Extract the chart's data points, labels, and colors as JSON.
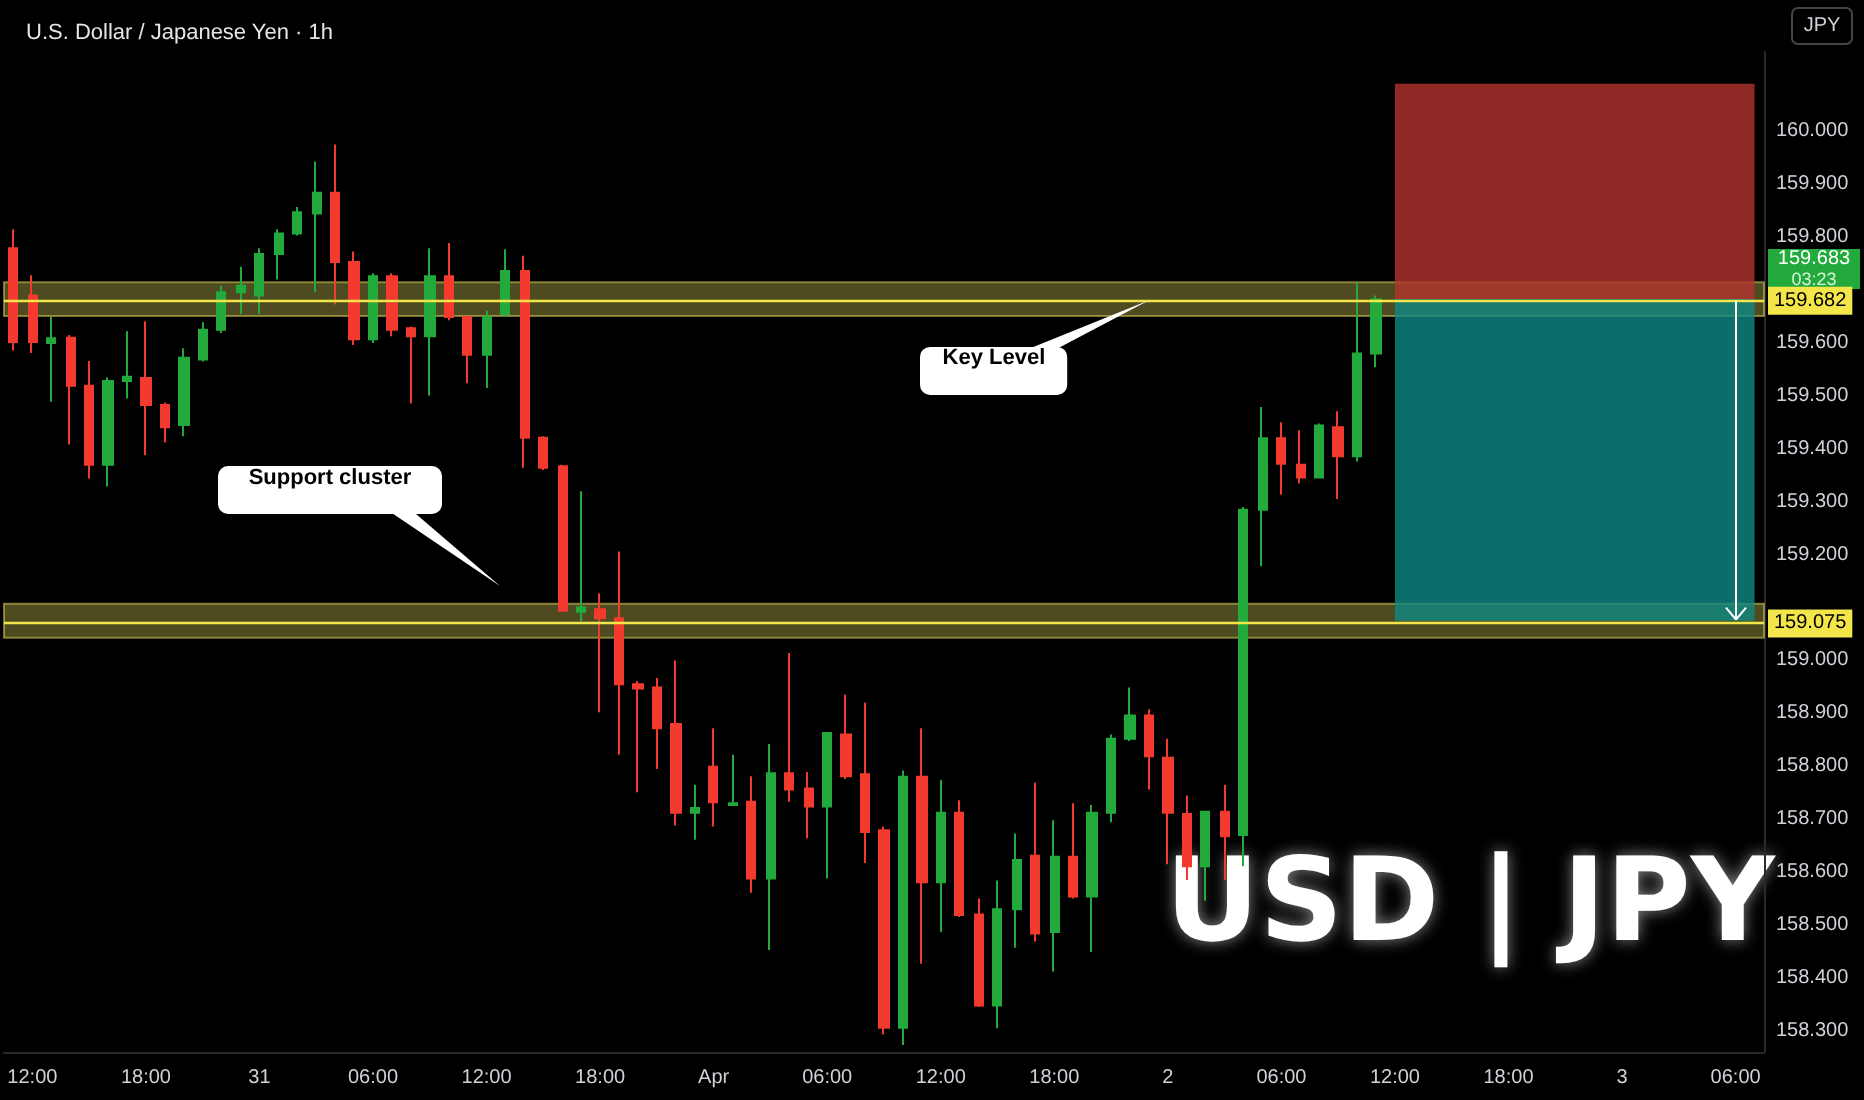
{
  "chart_data": {
    "type": "candlestick",
    "title": "U.S. Dollar / Japanese Yen · 1h",
    "categories": [
      null,
      "12:00",
      null,
      null,
      null,
      null,
      null,
      "18:00",
      null,
      null,
      null,
      null,
      null,
      "31",
      null,
      null,
      null,
      null,
      null,
      "06:00",
      null,
      null,
      null,
      null,
      null,
      "12:00",
      null,
      null,
      null,
      null,
      null,
      "18:00",
      null,
      null,
      null,
      null,
      null,
      "Apr",
      null,
      null,
      null,
      null,
      null,
      "06:00",
      null,
      null,
      null,
      null,
      null,
      "12:00",
      null,
      null,
      null,
      null,
      null,
      "18:00",
      null,
      null,
      null,
      null,
      null,
      "2",
      null,
      null,
      null,
      null,
      null,
      "06:00",
      null,
      null,
      null,
      null,
      null,
      "12:00",
      null,
      null,
      null,
      null,
      null,
      "18:00",
      null,
      null,
      null,
      null,
      null,
      "3",
      null,
      null,
      null,
      null,
      null,
      "06:00",
      null
    ],
    "ohlc": [
      [
        159.779,
        159.815,
        159.586,
        159.602
      ],
      [
        159.69,
        159.728,
        159.581,
        159.602
      ],
      [
        159.6,
        159.649,
        159.489,
        159.609
      ],
      [
        159.61,
        159.615,
        159.408,
        159.519
      ],
      [
        159.519,
        159.566,
        159.344,
        159.37
      ],
      [
        159.37,
        159.535,
        159.329,
        159.528
      ],
      [
        159.528,
        159.622,
        159.495,
        159.536
      ],
      [
        159.534,
        159.641,
        159.388,
        159.483
      ],
      [
        159.483,
        159.487,
        159.412,
        159.441
      ],
      [
        159.445,
        159.59,
        159.424,
        159.572
      ],
      [
        159.569,
        159.639,
        159.565,
        159.625
      ],
      [
        159.625,
        159.708,
        159.619,
        159.696
      ],
      [
        159.696,
        159.744,
        159.655,
        159.708
      ],
      [
        159.69,
        159.779,
        159.655,
        159.768
      ],
      [
        159.768,
        159.815,
        159.72,
        159.807
      ],
      [
        159.807,
        159.857,
        159.803,
        159.847
      ],
      [
        159.845,
        159.943,
        159.696,
        159.884
      ],
      [
        159.884,
        159.975,
        159.673,
        159.753
      ],
      [
        159.753,
        159.773,
        159.596,
        159.607
      ],
      [
        159.607,
        159.732,
        159.6,
        159.726
      ],
      [
        159.726,
        159.732,
        159.613,
        159.625
      ],
      [
        159.628,
        159.631,
        159.486,
        159.613
      ],
      [
        159.613,
        159.779,
        159.501,
        159.726
      ],
      [
        159.726,
        159.789,
        159.643,
        159.649
      ],
      [
        159.649,
        159.652,
        159.524,
        159.578
      ],
      [
        159.578,
        159.661,
        159.515,
        159.649
      ],
      [
        159.655,
        159.777,
        159.649,
        159.736
      ],
      [
        159.736,
        159.765,
        159.364,
        159.421
      ],
      [
        159.421,
        159.424,
        159.36,
        159.364
      ],
      [
        159.367,
        159.37,
        159.092,
        159.094
      ],
      [
        159.092,
        159.32,
        159.074,
        159.1
      ],
      [
        159.097,
        159.127,
        158.902,
        159.08
      ],
      [
        159.08,
        159.206,
        158.822,
        158.955
      ],
      [
        158.955,
        158.961,
        158.751,
        158.947
      ],
      [
        158.949,
        158.967,
        158.795,
        158.872
      ],
      [
        158.88,
        159.0,
        158.688,
        158.712
      ],
      [
        158.712,
        158.765,
        158.661,
        158.721
      ],
      [
        158.799,
        158.872,
        158.686,
        158.732
      ],
      [
        158.727,
        158.822,
        158.725,
        158.73
      ],
      [
        158.733,
        158.781,
        158.561,
        158.588
      ],
      [
        158.588,
        158.842,
        158.453,
        158.787
      ],
      [
        158.787,
        159.014,
        158.733,
        158.756
      ],
      [
        158.758,
        158.789,
        158.664,
        158.724
      ],
      [
        158.724,
        158.865,
        158.588,
        158.863
      ],
      [
        158.86,
        158.935,
        158.776,
        158.781
      ],
      [
        158.785,
        158.92,
        158.617,
        158.676
      ],
      [
        158.679,
        158.686,
        158.293,
        158.306
      ],
      [
        158.306,
        158.792,
        158.273,
        158.78
      ],
      [
        158.78,
        158.872,
        158.427,
        158.581
      ],
      [
        158.581,
        158.774,
        158.487,
        158.712
      ],
      [
        158.712,
        158.736,
        158.515,
        158.519
      ],
      [
        158.52,
        158.55,
        158.345,
        158.348
      ],
      [
        158.348,
        158.584,
        158.305,
        158.53
      ],
      [
        158.53,
        158.673,
        158.457,
        158.623
      ],
      [
        158.631,
        158.769,
        158.469,
        158.484
      ],
      [
        158.487,
        158.698,
        158.412,
        158.629
      ],
      [
        158.629,
        158.73,
        158.55,
        158.554
      ],
      [
        158.554,
        158.727,
        158.449,
        158.712
      ],
      [
        158.712,
        158.86,
        158.694,
        158.852
      ],
      [
        158.852,
        158.949,
        158.848,
        158.896
      ],
      [
        158.896,
        158.908,
        158.756,
        158.819
      ],
      [
        158.816,
        158.852,
        158.615,
        158.712
      ],
      [
        158.71,
        158.745,
        158.585,
        158.611
      ],
      [
        158.611,
        158.716,
        158.546,
        158.714
      ],
      [
        158.714,
        158.765,
        158.585,
        158.668
      ],
      [
        158.67,
        159.29,
        158.611,
        159.285
      ],
      [
        159.285,
        159.479,
        159.178,
        159.42
      ],
      [
        159.42,
        159.45,
        159.313,
        159.372
      ],
      [
        159.37,
        159.435,
        159.335,
        159.346
      ],
      [
        159.346,
        159.448,
        159.344,
        159.444
      ],
      [
        159.441,
        159.471,
        159.305,
        159.386
      ],
      [
        159.386,
        159.714,
        159.376,
        159.58
      ],
      [
        159.58,
        159.69,
        159.554,
        159.682
      ],
      null,
      null,
      null,
      null,
      null,
      null,
      null,
      null,
      null,
      null,
      null,
      null,
      null,
      null,
      null,
      null,
      null,
      null,
      null,
      null
    ],
    "colors": [
      "#f23b2e",
      "#f23b2e",
      "#22ab3c",
      "#f23b2e",
      "#f23b2e",
      "#22ab3c",
      "#22ab3c",
      "#f23b2e",
      "#f23b2e",
      "#22ab3c",
      "#22ab3c",
      "#22ab3c",
      "#22ab3c",
      "#22ab3c",
      "#22ab3c",
      "#22ab3c",
      "#22ab3c",
      "#f23b2e",
      "#f23b2e",
      "#22ab3c",
      "#f23b2e",
      "#f23b2e",
      "#22ab3c",
      "#f23b2e",
      "#f23b2e",
      "#22ab3c",
      "#22ab3c",
      "#f23b2e",
      "#f23b2e",
      "#f23b2e",
      "#22ab3c",
      "#f23b2e",
      "#f23b2e",
      "#f23b2e",
      "#f23b2e",
      "#f23b2e",
      "#22ab3c",
      "#f23b2e",
      "#22ab3c",
      "#f23b2e",
      "#22ab3c",
      "#f23b2e",
      "#f23b2e",
      "#22ab3c",
      "#f23b2e",
      "#f23b2e",
      "#f23b2e",
      "#22ab3c",
      "#f23b2e",
      "#22ab3c",
      "#f23b2e",
      "#f23b2e",
      "#22ab3c",
      "#22ab3c",
      "#f23b2e",
      "#22ab3c",
      "#f23b2e",
      "#22ab3c",
      "#22ab3c",
      "#22ab3c",
      "#f23b2e",
      "#f23b2e",
      "#f23b2e",
      "#22ab3c",
      "#f23b2e",
      "#22ab3c",
      "#22ab3c",
      "#f23b2e",
      "#f23b2e",
      "#22ab3c",
      "#f23b2e",
      "#22ab3c",
      "#22ab3c",
      null,
      null,
      null,
      null,
      null,
      null,
      null,
      null,
      null,
      null,
      null,
      null,
      null,
      null,
      null,
      null,
      null,
      null,
      null,
      null
    ],
    "ylim": [
      158.26,
      160.15
    ],
    "yticks": [
      {
        "value": 158.3,
        "label": "158.300"
      },
      {
        "value": 158.4,
        "label": "158.400"
      },
      {
        "value": 158.5,
        "label": "158.500"
      },
      {
        "value": 158.6,
        "label": "158.600"
      },
      {
        "value": 158.7,
        "label": "158.700"
      },
      {
        "value": 158.8,
        "label": "158.800"
      },
      {
        "value": 158.9,
        "label": "158.900"
      },
      {
        "value": 159,
        "label": "159.000"
      },
      {
        "value": 159.2,
        "label": "159.200"
      },
      {
        "value": 159.3,
        "label": "159.300"
      },
      {
        "value": 159.4,
        "label": "159.400"
      },
      {
        "value": 159.5,
        "label": "159.500"
      },
      {
        "value": 159.6,
        "label": "159.600"
      },
      {
        "value": 159.8,
        "label": "159.800"
      },
      {
        "value": 159.9,
        "label": "159.900"
      },
      {
        "value": 160,
        "label": "160.000"
      }
    ],
    "bands": [
      {
        "axis": "y",
        "from": 159.651,
        "to": 159.715,
        "color": "#8c8838"
      },
      {
        "axis": "y",
        "from": 159.043,
        "to": 159.107,
        "color": "#8c8838"
      },
      {
        "axis": "y",
        "from": 159.683,
        "to": 160.09,
        "color": "#b2332e"
      },
      {
        "axis": "y",
        "from": 159.075,
        "to": 159.683,
        "color": "#0f8a84"
      }
    ],
    "ref_lines": [
      {
        "axis": "y",
        "value": 159.682,
        "label": "159.682",
        "color": "#f2e64a"
      },
      {
        "axis": "y",
        "value": 159.075,
        "label": "159.075",
        "color": "#f2e64a"
      }
    ],
    "annotations": [
      {
        "text": "Key Level",
        "y": 159.683
      },
      "Support cluster",
      {
        "text": "159.683",
        "y": 159.683
      },
      "03:23",
      "USD | JPY",
      "JPY"
    ]
  }
}
